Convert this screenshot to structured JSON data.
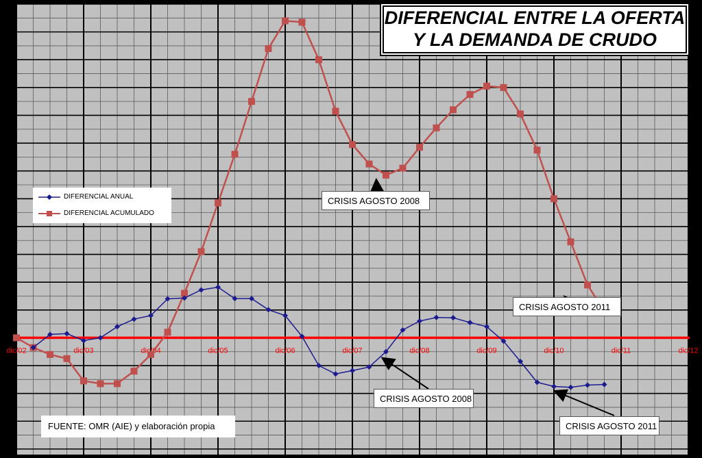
{
  "title": {
    "line1": "DIFERENCIAL ENTRE LA OFERTA",
    "line2": "Y LA DEMANDA DE CRUDO"
  },
  "legend": {
    "items": [
      {
        "label": "DIFERENCIAL ANUAL",
        "color": "#1c1c8f",
        "marker": "diamond"
      },
      {
        "label": "DIFERENCIAL ACUMULADO",
        "color": "#c0504d",
        "marker": "square"
      }
    ],
    "placement": "left"
  },
  "source_note": "FUENTE: OMR (AIE) y elaboración propia",
  "annotations": [
    {
      "text": "CRISIS AGOSTO 2008",
      "series": "acumulado"
    },
    {
      "text": "CRISIS AGOSTO 2011",
      "series": "acumulado"
    },
    {
      "text": "CRISIS AGOSTO 2008",
      "series": "anual"
    },
    {
      "text": "CRISIS AGOSTO 2011",
      "series": "anual"
    }
  ],
  "colors": {
    "background": "#c0c0c0",
    "grid_major": "#000000",
    "grid_minor": "#5a5a5a",
    "zero_line": "#ff0000",
    "tick_labels": "#ff0000"
  },
  "chart_data": {
    "type": "line",
    "x_unit": "quarter index from dic/02",
    "x_ticks": [
      "dic/02",
      "dic/03",
      "dic/04",
      "dic/05",
      "dic/06",
      "dic/07",
      "dic/08",
      "dic/09",
      "dic/10",
      "dic/11",
      "dic/12"
    ],
    "xlim": [
      0,
      40
    ],
    "ylim": [
      -4.2,
      12
    ],
    "grid": true,
    "series": [
      {
        "name": "DIFERENCIAL ANUAL",
        "x": [
          1,
          2,
          3,
          4,
          5,
          6,
          7,
          8,
          9,
          10,
          11,
          12,
          13,
          14,
          15,
          16,
          17,
          18,
          19,
          20,
          21,
          22,
          23,
          24,
          25,
          26,
          27,
          28,
          29,
          30,
          31,
          32,
          33,
          34,
          35
        ],
        "y": [
          -0.35,
          0.12,
          0.15,
          -0.1,
          0.0,
          0.4,
          0.67,
          0.8,
          1.4,
          1.43,
          1.72,
          1.82,
          1.41,
          1.41,
          1.01,
          0.8,
          0.05,
          -1.0,
          -1.3,
          -1.18,
          -1.05,
          -0.5,
          0.28,
          0.6,
          0.73,
          0.72,
          0.55,
          0.4,
          -0.12,
          -0.85,
          -1.6,
          -1.75,
          -1.78,
          -1.7,
          -1.68
        ]
      },
      {
        "name": "DIFERENCIAL ACUMULADO",
        "x": [
          0,
          1,
          2,
          3,
          4,
          5,
          6,
          7,
          8,
          9,
          10,
          11,
          12,
          13,
          14,
          15,
          16,
          17,
          18,
          19,
          20,
          21,
          22,
          23,
          24,
          25,
          26,
          27,
          28,
          29,
          30,
          31,
          32,
          33,
          34,
          35
        ],
        "y": [
          0.0,
          -0.35,
          -0.6,
          -0.75,
          -1.55,
          -1.65,
          -1.65,
          -1.2,
          -0.6,
          0.2,
          1.6,
          3.1,
          4.85,
          6.6,
          8.5,
          10.4,
          11.4,
          11.35,
          10.0,
          8.15,
          6.95,
          6.25,
          5.85,
          6.1,
          6.85,
          7.55,
          8.2,
          8.75,
          9.05,
          9.0,
          8.05,
          6.75,
          5.0,
          3.45,
          1.9,
          0.95
        ]
      }
    ]
  }
}
